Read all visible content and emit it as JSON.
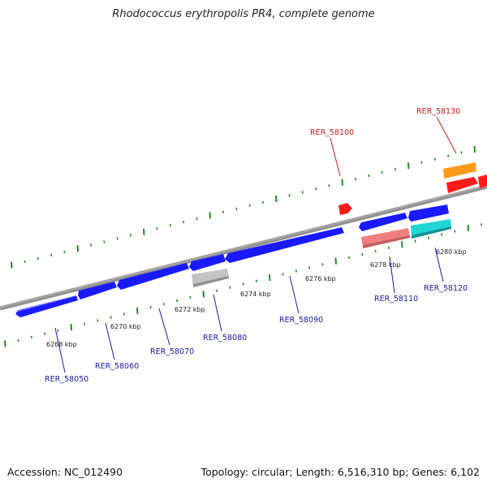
{
  "title": "Rhodococcus erythropolis PR4, complete genome",
  "footer": {
    "accession": "Accession: NC_012490",
    "summary": "Topology: circular; Length: 6,516,310 bp; Genes: 6,102"
  },
  "colors": {
    "blue_gene": "#1a1aff",
    "red_gene": "#ff1a1a",
    "orange_gene": "#ff9a1a",
    "grey_gene": "#c0c0c0",
    "pink_gene": "#f08080",
    "cyan_gene": "#20d4d4",
    "ticks": "#1f8c1f",
    "backbone": "#808080",
    "label_blue": "#1a1aa0",
    "label_red": "#cc1a1a"
  },
  "scale_labels": [
    "6268 kbp",
    "6270 kbp",
    "6272 kbp",
    "6274 kbp",
    "6276 kbp",
    "6278 kbp",
    "6280 kbp"
  ],
  "gene_labels": [
    "RER_58050",
    "RER_58060",
    "RER_58070",
    "RER_58080",
    "RER_58090",
    "RER_58100",
    "RER_58110",
    "RER_58120",
    "RER_58130"
  ]
}
